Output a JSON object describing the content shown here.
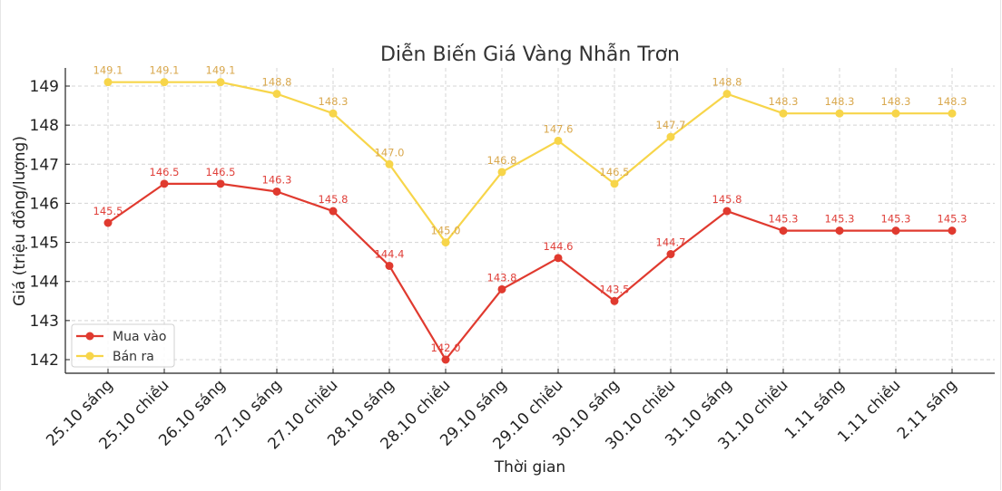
{
  "chart_data": {
    "type": "line",
    "title": "Diễn Biến Giá Vàng Nhẫn Trơn",
    "xlabel": "Thời gian",
    "ylabel": "Giá (triệu đồng/lượng)",
    "categories": [
      "25.10 sáng",
      "25.10 chiều",
      "26.10 sáng",
      "27.10 sáng",
      "27.10 chiều",
      "28.10 sáng",
      "28.10 chiều",
      "29.10 sáng",
      "29.10 chiều",
      "30.10 sáng",
      "30.10 chiều",
      "31.10 sáng",
      "31.10 chiều",
      "1.11 sáng",
      "1.11 chiều",
      "2.11 sáng"
    ],
    "series": [
      {
        "name": "Mua vào",
        "color": "#e03a2f",
        "label_color": "#e0403a",
        "values": [
          145.5,
          146.5,
          146.5,
          146.3,
          145.8,
          144.4,
          142.0,
          143.8,
          144.6,
          143.5,
          144.7,
          145.8,
          145.3,
          145.3,
          145.3,
          145.3
        ],
        "labels": [
          "145.5",
          "146.5",
          "146.5",
          "146.3",
          "145.8",
          "144.4",
          "142.0",
          "143.8",
          "144.6",
          "143.5",
          "144.7",
          "145.8",
          "145.3",
          "145.3",
          "145.3",
          "145.3"
        ]
      },
      {
        "name": "Bán ra",
        "color": "#f7d54a",
        "label_color": "#d9a84e",
        "values": [
          149.1,
          149.1,
          149.1,
          148.8,
          148.3,
          147.0,
          145.0,
          146.8,
          147.6,
          146.5,
          147.7,
          148.8,
          148.3,
          148.3,
          148.3,
          148.3
        ],
        "labels": [
          "149.1",
          "149.1",
          "149.1",
          "148.8",
          "148.3",
          "147.0",
          "145.0",
          "146.8",
          "147.6",
          "146.5",
          "147.7",
          "148.8",
          "148.3",
          "148.3",
          "148.3",
          "148.3"
        ]
      }
    ],
    "yticks": [
      "142",
      "143",
      "144",
      "145",
      "146",
      "147",
      "148",
      "149"
    ],
    "ylim": [
      141.7,
      149.45
    ],
    "grid": true,
    "legend_position": "lower left"
  }
}
